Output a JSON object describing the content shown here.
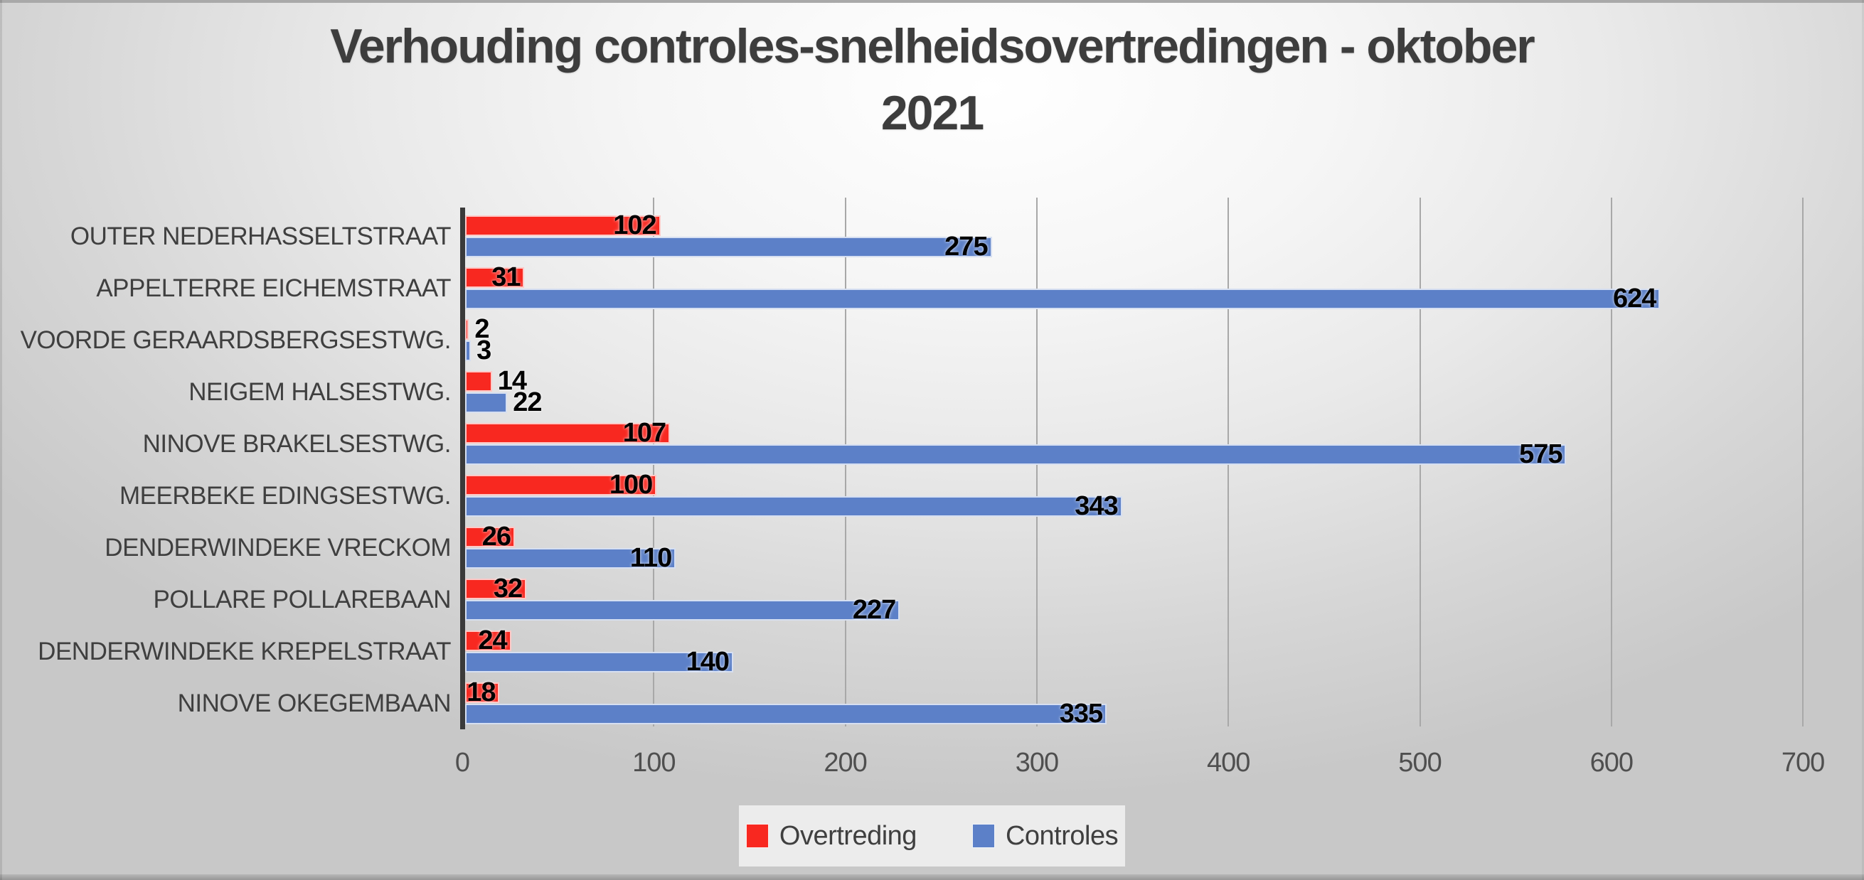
{
  "title": {
    "line1": "Verhouding controles-snelheidsovertredingen - oktober",
    "line2": "2021"
  },
  "chart_data": {
    "type": "bar",
    "orientation": "horizontal",
    "title": "Verhouding controles-snelheidsovertredingen - oktober 2021",
    "categories": [
      "OUTER NEDERHASSELTSTRAAT",
      "APPELTERRE EICHEMSTRAAT",
      "VOORDE GERAARDSBERGSESTWG.",
      "NEIGEM HALSESTWG.",
      "NINOVE BRAKELSESTWG.",
      "MEERBEKE EDINGSESTWG.",
      "DENDERWINDEKE VRECKOM",
      "POLLARE POLLAREBAAN",
      "DENDERWINDEKE KREPELSTRAAT",
      "NINOVE OKEGEMBAAN"
    ],
    "series": [
      {
        "name": "Overtreding",
        "color": "#f82820",
        "values": [
          102,
          31,
          2,
          14,
          107,
          100,
          26,
          32,
          24,
          18
        ],
        "label_positions": [
          "in",
          "in",
          "out",
          "out",
          "in",
          "in",
          "in",
          "in",
          "in",
          "in"
        ]
      },
      {
        "name": "Controles",
        "color": "#5c80c8",
        "values": [
          275,
          624,
          3,
          22,
          575,
          343,
          110,
          227,
          140,
          335
        ],
        "label_positions": [
          "in",
          "in",
          "out",
          "out",
          "in",
          "in",
          "in",
          "in",
          "in",
          "in"
        ]
      }
    ],
    "x_ticks": [
      0,
      100,
      200,
      300,
      400,
      500,
      600,
      700
    ],
    "xlim": [
      0,
      700
    ],
    "grid": true,
    "legend_position": "bottom",
    "data_labels": true
  }
}
